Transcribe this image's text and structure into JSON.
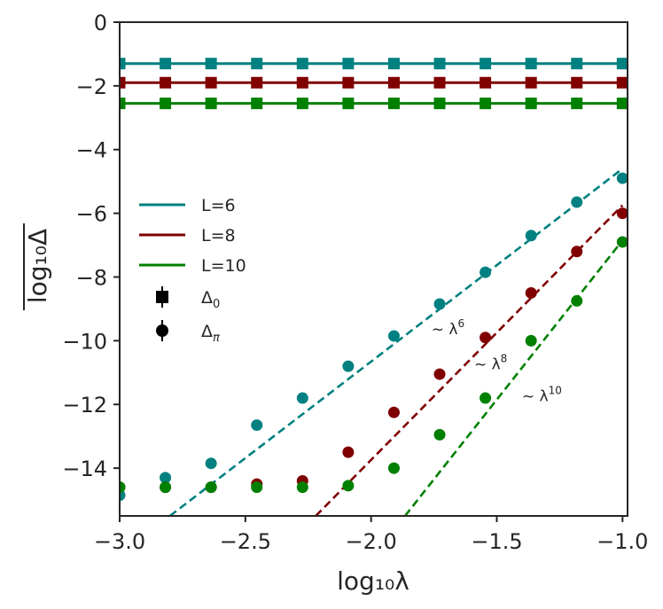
{
  "chart_data": {
    "type": "scatter",
    "xlabel": "log₁₀λ",
    "ylabel": "log₁₀Δ",
    "xlim": [
      -3.0,
      -0.98
    ],
    "ylim": [
      -15.5,
      0
    ],
    "x_ticks": [
      -3.0,
      -2.5,
      -2.0,
      -1.5,
      -1.0
    ],
    "x_tick_labels": [
      "−3.0",
      "−2.5",
      "−2.0",
      "−1.5",
      "−1.0"
    ],
    "y_ticks": [
      0,
      -2,
      -4,
      -6,
      -8,
      -10,
      -12,
      -14
    ],
    "y_tick_labels": [
      "0",
      "−2",
      "−4",
      "−6",
      "−8",
      "−10",
      "−12",
      "−14"
    ],
    "x": [
      -3.0,
      -2.8182,
      -2.6364,
      -2.4545,
      -2.2727,
      -2.0909,
      -1.9091,
      -1.7273,
      -1.5455,
      -1.3636,
      -1.1818,
      -1.0
    ],
    "series": [
      {
        "name": "L=6",
        "color": "#008080",
        "delta0": -1.3,
        "delta_pi": [
          -14.85,
          -14.3,
          -13.85,
          -12.65,
          -11.8,
          -10.8,
          -9.85,
          -8.85,
          -7.85,
          -6.7,
          -5.65,
          -4.9
        ]
      },
      {
        "name": "L=8",
        "color": "#800000",
        "delta0": -1.9,
        "delta_pi": [
          -14.6,
          -14.6,
          -14.6,
          -14.5,
          -14.4,
          -13.5,
          -12.25,
          -11.05,
          -9.9,
          -8.5,
          -7.2,
          -6.0
        ]
      },
      {
        "name": "L=10",
        "color": "#008000",
        "delta0": -2.55,
        "delta_pi": [
          -14.6,
          -14.6,
          -14.6,
          -14.6,
          -14.6,
          -14.55,
          -14.0,
          -12.95,
          -11.8,
          -10.0,
          -8.75,
          -6.9
        ]
      }
    ],
    "fits": [
      {
        "color": "#008080",
        "x": [
          -2.8,
          -1.0
        ],
        "y": [
          -15.5,
          -4.6
        ]
      },
      {
        "color": "#800000",
        "x": [
          -2.22,
          -1.0
        ],
        "y": [
          -15.5,
          -5.75
        ]
      },
      {
        "color": "#008000",
        "x": [
          -1.865,
          -1.0
        ],
        "y": [
          -15.5,
          -6.85
        ]
      }
    ],
    "legend": {
      "position": "center-left",
      "entries": [
        {
          "label": "L=6",
          "kind": "line",
          "color": "#008080"
        },
        {
          "label": "L=8",
          "kind": "line",
          "color": "#800000"
        },
        {
          "label": "L=10",
          "kind": "line",
          "color": "#008000"
        },
        {
          "label": "Δ",
          "sub": "0",
          "kind": "square"
        },
        {
          "label": "Δ",
          "sub": "π",
          "kind": "circle"
        }
      ]
    },
    "annotations": [
      {
        "text": "~ λ",
        "sup": "6",
        "x": -1.76,
        "y": -9.8
      },
      {
        "text": "~ λ",
        "sup": "8",
        "x": -1.59,
        "y": -10.9
      },
      {
        "text": "~ λ",
        "sup": "10",
        "x": -1.4,
        "y": -11.9
      }
    ]
  }
}
